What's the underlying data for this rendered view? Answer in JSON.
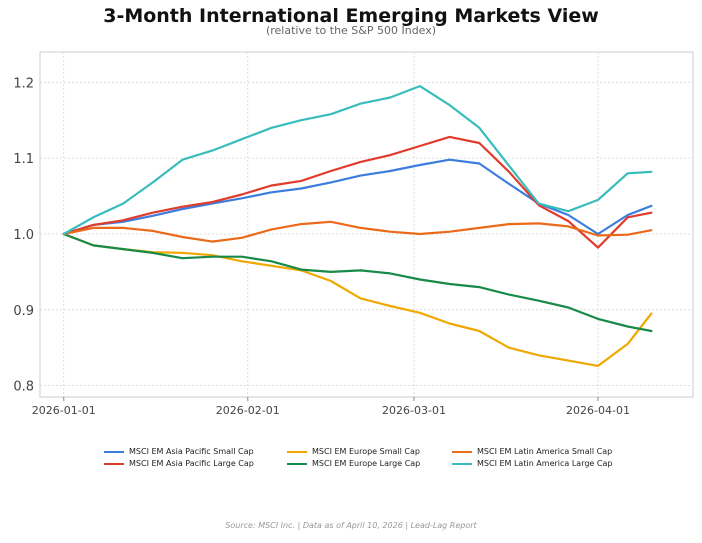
{
  "chart_data": {
    "type": "line",
    "title": "3-Month International Emerging Markets View",
    "subtitle": "(relative to the S&P 500 Index)",
    "xlabel": "",
    "ylabel": "",
    "x_ticks": [
      "2026-01-01",
      "2026-02-01",
      "2026-03-01",
      "2026-04-01"
    ],
    "y_ticks": [
      0.8,
      0.9,
      1.0,
      1.1,
      1.2
    ],
    "ylim": [
      0.785,
      1.24
    ],
    "xlim": [
      "2025-12-28",
      "2026-04-17"
    ],
    "grid": true,
    "legend_position": "bottom",
    "x": [
      "2026-01-01",
      "2026-01-06",
      "2026-01-11",
      "2026-01-16",
      "2026-01-21",
      "2026-01-26",
      "2026-01-31",
      "2026-02-05",
      "2026-02-10",
      "2026-02-15",
      "2026-02-20",
      "2026-02-25",
      "2026-03-02",
      "2026-03-07",
      "2026-03-12",
      "2026-03-17",
      "2026-03-22",
      "2026-03-27",
      "2026-04-01",
      "2026-04-06",
      "2026-04-10"
    ],
    "series": [
      {
        "name": "MSCI EM Asia Pacific Small Cap",
        "color": "#3b7ddd",
        "values": [
          1.0,
          1.012,
          1.016,
          1.024,
          1.033,
          1.04,
          1.047,
          1.055,
          1.06,
          1.068,
          1.077,
          1.083,
          1.091,
          1.098,
          1.093,
          1.066,
          1.04,
          1.025,
          1.0,
          1.025,
          1.037
        ]
      },
      {
        "name": "MSCI EM Asia Pacific Large Cap",
        "color": "#e03b2c",
        "values": [
          1.0,
          1.012,
          1.018,
          1.028,
          1.036,
          1.042,
          1.052,
          1.064,
          1.07,
          1.083,
          1.095,
          1.104,
          1.116,
          1.128,
          1.12,
          1.082,
          1.038,
          1.017,
          0.982,
          1.022,
          1.028
        ]
      },
      {
        "name": "MSCI EM Europe Small Cap",
        "color": "#f0a800",
        "values": [
          1.0,
          0.985,
          0.98,
          0.976,
          0.975,
          0.972,
          0.964,
          0.958,
          0.952,
          0.938,
          0.915,
          0.905,
          0.896,
          0.882,
          0.872,
          0.85,
          0.84,
          0.833,
          0.826,
          0.855,
          0.895
        ]
      },
      {
        "name": "MSCI EM Europe Large Cap",
        "color": "#178a48",
        "values": [
          1.0,
          0.985,
          0.98,
          0.975,
          0.968,
          0.97,
          0.97,
          0.964,
          0.953,
          0.95,
          0.952,
          0.948,
          0.94,
          0.934,
          0.93,
          0.92,
          0.912,
          0.903,
          0.888,
          0.878,
          0.872
        ]
      },
      {
        "name": "MSCI EM Latin America Small Cap",
        "color": "#ea6a1a",
        "values": [
          1.0,
          1.008,
          1.008,
          1.004,
          0.996,
          0.99,
          0.995,
          1.006,
          1.013,
          1.016,
          1.008,
          1.003,
          1.0,
          1.003,
          1.008,
          1.013,
          1.014,
          1.01,
          0.998,
          0.999,
          1.005
        ]
      },
      {
        "name": "MSCI EM Latin America Large Cap",
        "color": "#39bcbc",
        "values": [
          1.0,
          1.022,
          1.04,
          1.068,
          1.098,
          1.11,
          1.125,
          1.14,
          1.15,
          1.158,
          1.172,
          1.18,
          1.195,
          1.17,
          1.14,
          1.09,
          1.04,
          1.03,
          1.045,
          1.08,
          1.082
        ]
      }
    ]
  },
  "footer": "Source: MSCI Inc.  |  Data as of April 10, 2026  |  Lead-Lag Report"
}
